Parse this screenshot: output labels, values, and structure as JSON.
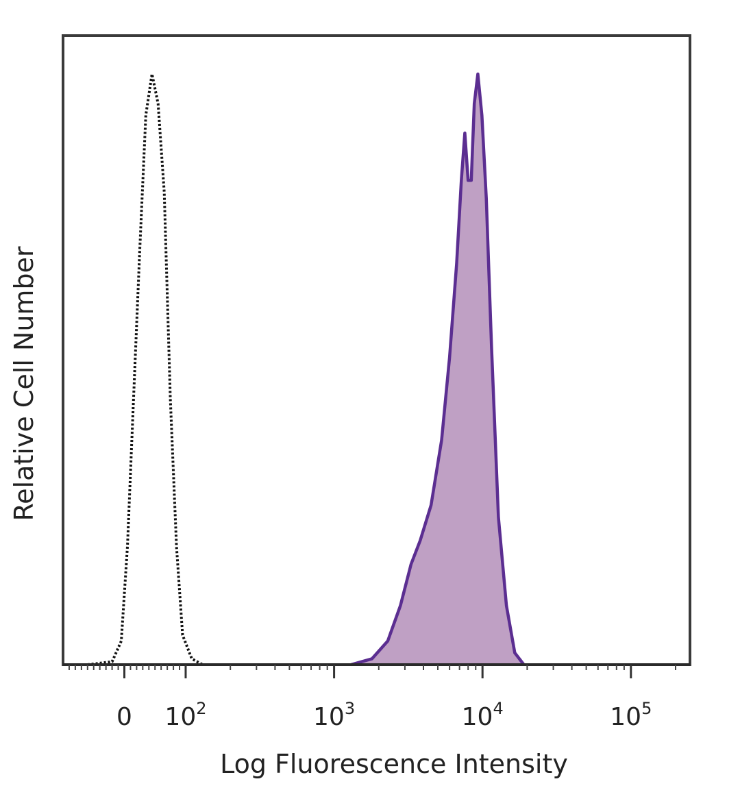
{
  "chart_data": {
    "type": "area",
    "title": "",
    "xlabel": "Log Fluorescence Intensity",
    "ylabel": "Relative Cell Number",
    "x_scale": "biexponential",
    "xlim": [
      -100,
      250000
    ],
    "ylim": [
      0,
      100
    ],
    "x_ticks": [
      {
        "value": 0,
        "label": "0",
        "exp": ""
      },
      {
        "value": 100,
        "label": "10",
        "exp": "2"
      },
      {
        "value": 1000,
        "label": "10",
        "exp": "3"
      },
      {
        "value": 10000,
        "label": "10",
        "exp": "4"
      },
      {
        "value": 100000,
        "label": "10",
        "exp": "5"
      }
    ],
    "grid": false,
    "legend": "none",
    "series": [
      {
        "role": "control",
        "style": "dotted",
        "color": "#111111",
        "fill": "none",
        "x": [
          -60,
          -20,
          -5,
          5,
          15,
          25,
          35,
          45,
          55,
          65,
          75,
          85,
          95,
          110,
          130
        ],
        "y": [
          0,
          0.5,
          4,
          20,
          45,
          70,
          93,
          100,
          95,
          80,
          45,
          20,
          5,
          1,
          0
        ]
      },
      {
        "role": "stained",
        "style": "solid",
        "color": "#5b2e91",
        "fill": "#bfa0c4",
        "x": [
          1300,
          1800,
          2300,
          2800,
          3300,
          3800,
          4500,
          5300,
          6000,
          6700,
          7200,
          7600,
          8000,
          8400,
          8800,
          9300,
          9900,
          10600,
          11500,
          12800,
          14500,
          16500,
          19000
        ],
        "y": [
          0,
          1,
          4,
          10,
          17,
          21,
          27,
          38,
          52,
          68,
          82,
          90,
          82,
          82,
          95,
          100,
          93,
          79,
          54,
          25,
          10,
          2,
          0
        ]
      }
    ]
  }
}
